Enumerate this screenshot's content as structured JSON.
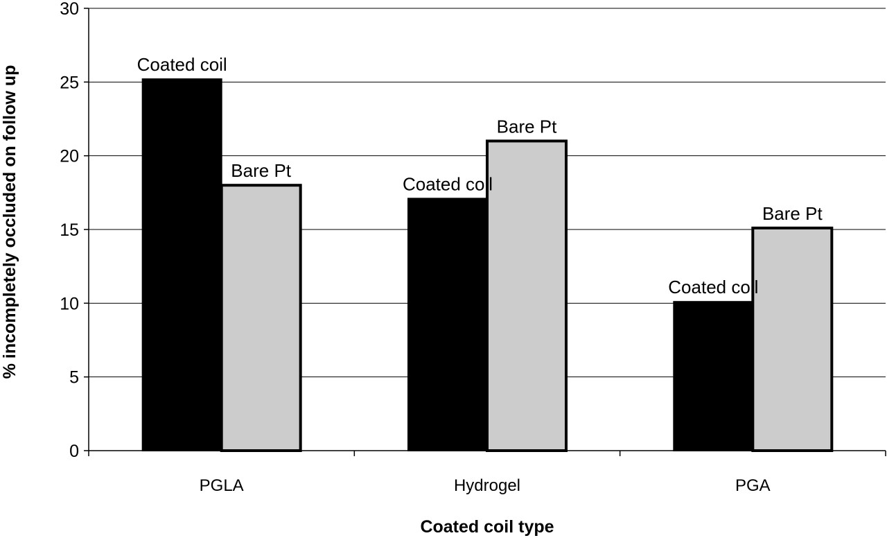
{
  "chart_data": {
    "type": "bar",
    "categories": [
      "PGLA",
      "Hydrogel",
      "PGA"
    ],
    "series": [
      {
        "name": "Coated coil",
        "values": [
          25.2,
          17.1,
          10.1
        ],
        "color": "#000000",
        "label": "Coated coil"
      },
      {
        "name": "Bare Pt",
        "values": [
          18.0,
          21.0,
          15.1
        ],
        "color": "#cccccc",
        "label": "Bare Pt"
      }
    ],
    "title": "",
    "xlabel": "Coated coil type",
    "ylabel": "% incompletely occluded on follow up",
    "ylim": [
      0,
      30
    ],
    "yticks": [
      "0",
      "5",
      "10",
      "15",
      "20",
      "25",
      "30"
    ],
    "grid": true,
    "legend": "none"
  }
}
